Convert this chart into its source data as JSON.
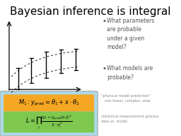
{
  "title": "Bayesian inference is integral",
  "title_fontsize": 11,
  "bg_color": "#ffffff",
  "bullet_color": "#555555",
  "bullet1": "What parameters\nare probable\nunder a given\nmodel?",
  "bullet2": "What models are\nprobable?",
  "eq_box_bg": "#add8e6",
  "eq1_bg": "#f5a623",
  "eq2_bg": "#7ec850",
  "eq1_text": "$M_1 : y_{\\rm pred} = \\theta_1 + x \\cdot \\theta_2$",
  "eq2_text": "$L = \\prod_i \\frac{(y_i - y_{\\rm pred}(x_i))^2}{2 \\cdot \\sigma_i^2}$",
  "note1": "\"physical model prediction\"\n   non-linear, complex, slow",
  "note2": "statistical measurement process\ndata vs. model",
  "note1_color": "#888888",
  "note2_color": "#888888",
  "curve_color": "#000000"
}
